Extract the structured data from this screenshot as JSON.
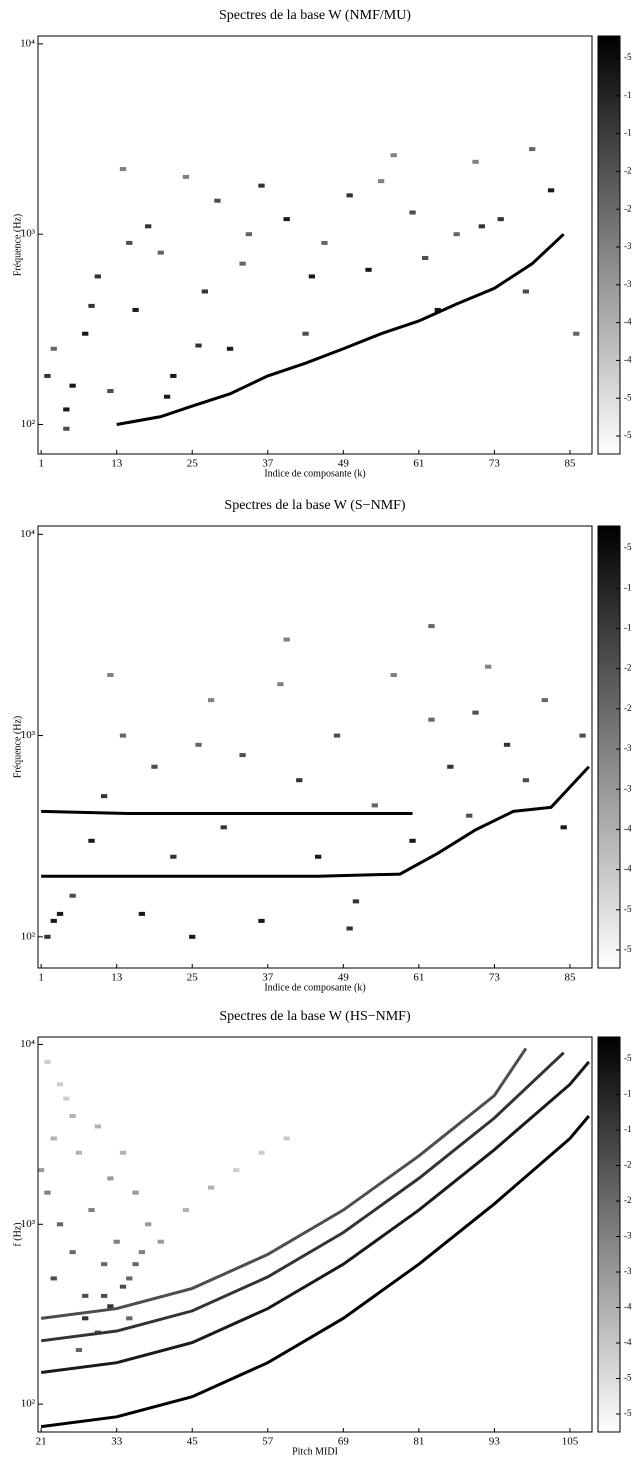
{
  "chart_data": [
    {
      "type": "heatmap",
      "title": "Spectres de la base W (NMF/MU)",
      "x_label": "Indice de composante (k)",
      "y_label": "Fréquence (Hz)",
      "xlim": [
        0.5,
        88.5
      ],
      "xticks": [
        1,
        13,
        25,
        37,
        49,
        61,
        73,
        85
      ],
      "ylim": [
        70,
        11000
      ],
      "ylog": true,
      "yticks": [
        {
          "value": 100,
          "label": "10²"
        },
        {
          "value": 1000,
          "label": "10³"
        },
        {
          "value": 10000,
          "label": "10⁴"
        }
      ],
      "zlim": [
        0,
        1
      ],
      "cmap": [
        "#ffffff",
        "#000000"
      ],
      "colorbar_labels": [
        "-5",
        "-1",
        "-1",
        "-2",
        "-2",
        "-3",
        "-3",
        "-4",
        "-4",
        "-5",
        "-5"
      ],
      "cells": {
        "x": [
          2,
          3,
          5,
          5,
          8,
          10,
          12,
          14,
          16,
          18,
          20,
          22,
          24,
          27,
          29,
          31,
          33,
          36,
          40,
          43,
          46,
          50,
          53,
          57,
          60,
          64,
          67,
          70,
          74,
          78,
          82,
          86,
          6,
          9,
          15,
          21,
          26,
          34,
          44,
          55,
          62,
          71,
          79
        ],
        "y": [
          180,
          250,
          120,
          95,
          300,
          600,
          150,
          2200,
          400,
          1100,
          800,
          180,
          2000,
          500,
          1500,
          250,
          700,
          1800,
          1200,
          300,
          900,
          1600,
          650,
          2600,
          1300,
          400,
          1000,
          2400,
          1200,
          500,
          1700,
          300,
          160,
          420,
          900,
          140,
          260,
          1000,
          600,
          1900,
          750,
          1100,
          2800
        ],
        "z": [
          0.8,
          0.6,
          0.9,
          0.7,
          0.9,
          0.8,
          0.7,
          0.5,
          0.9,
          0.8,
          0.6,
          0.9,
          0.5,
          0.8,
          0.7,
          0.9,
          0.6,
          0.8,
          0.9,
          0.7,
          0.6,
          0.8,
          0.9,
          0.5,
          0.7,
          0.9,
          0.6,
          0.5,
          0.8,
          0.7,
          0.9,
          0.6,
          0.9,
          0.8,
          0.7,
          0.9,
          0.8,
          0.6,
          0.9,
          0.5,
          0.7,
          0.8,
          0.6
        ]
      },
      "series": [
        {
          "color": "#000000",
          "x": [
            13,
            20,
            25,
            31,
            37,
            43,
            49,
            55,
            61,
            67,
            73,
            79,
            84
          ],
          "values": [
            100,
            110,
            125,
            145,
            180,
            210,
            250,
            300,
            350,
            430,
            520,
            700,
            1000
          ]
        }
      ]
    },
    {
      "type": "heatmap",
      "title": "Spectres de la base W (S−NMF)",
      "x_label": "Indice de composante (k)",
      "y_label": "Fréquence (Hz)",
      "xlim": [
        0.5,
        88.5
      ],
      "xticks": [
        1,
        13,
        25,
        37,
        49,
        61,
        73,
        85
      ],
      "ylim": [
        70,
        11000
      ],
      "ylog": true,
      "yticks": [
        {
          "value": 100,
          "label": "10²"
        },
        {
          "value": 1000,
          "label": "10³"
        },
        {
          "value": 10000,
          "label": "10⁴"
        }
      ],
      "zlim": [
        0,
        1
      ],
      "cmap": [
        "#ffffff",
        "#000000"
      ],
      "colorbar_labels": [
        "-5",
        "-1",
        "-1",
        "-2",
        "-2",
        "-3",
        "-3",
        "-4",
        "-4",
        "-5",
        "-5"
      ],
      "cells": {
        "x": [
          2,
          4,
          6,
          9,
          11,
          14,
          17,
          19,
          22,
          25,
          28,
          30,
          33,
          36,
          39,
          42,
          45,
          48,
          51,
          54,
          57,
          60,
          63,
          66,
          69,
          72,
          75,
          78,
          81,
          84,
          87,
          3,
          12,
          26,
          40,
          50,
          63,
          70
        ],
        "y": [
          100,
          130,
          160,
          300,
          500,
          1000,
          130,
          700,
          250,
          100,
          1500,
          350,
          800,
          120,
          1800,
          600,
          250,
          1000,
          150,
          450,
          2000,
          300,
          1200,
          700,
          400,
          2200,
          900,
          600,
          1500,
          350,
          1000,
          120,
          2000,
          900,
          3000,
          110,
          3500,
          1300
        ],
        "z": [
          0.8,
          0.9,
          0.7,
          0.9,
          0.8,
          0.6,
          0.9,
          0.7,
          0.8,
          0.9,
          0.5,
          0.8,
          0.7,
          0.9,
          0.5,
          0.8,
          0.9,
          0.7,
          0.8,
          0.6,
          0.5,
          0.9,
          0.6,
          0.8,
          0.7,
          0.5,
          0.8,
          0.7,
          0.6,
          0.9,
          0.7,
          0.9,
          0.5,
          0.6,
          0.5,
          0.8,
          0.6,
          0.7
        ]
      },
      "series": [
        {
          "color": "#000000",
          "x": [
            1,
            15,
            30,
            45,
            58,
            64,
            70,
            76,
            82,
            88
          ],
          "values": [
            200,
            200,
            200,
            200,
            205,
            260,
            340,
            420,
            440,
            700
          ]
        },
        {
          "color": "#000000",
          "x": [
            1,
            15,
            30,
            45,
            60
          ],
          "values": [
            420,
            410,
            410,
            410,
            410
          ]
        }
      ]
    },
    {
      "type": "heatmap",
      "title": "Spectres de la base W (HS−NMF)",
      "x_label": "Pitch MIDI",
      "y_label": "f (Hz)",
      "xlim": [
        20.5,
        108.5
      ],
      "xticks": [
        21,
        33,
        45,
        57,
        69,
        81,
        93,
        105
      ],
      "ylim": [
        70,
        11000
      ],
      "ylog": true,
      "yticks": [
        {
          "value": 100,
          "label": "10²"
        },
        {
          "value": 1000,
          "label": "10³"
        },
        {
          "value": 10000,
          "label": "10⁴"
        }
      ],
      "zlim": [
        0,
        1
      ],
      "cmap": [
        "#ffffff",
        "#000000"
      ],
      "colorbar_labels": [
        "-5",
        "-1",
        "-1",
        "-2",
        "-2",
        "-3",
        "-3",
        "-4",
        "-4",
        "-5",
        "-5"
      ],
      "cells": {
        "x": [
          21,
          22,
          23,
          24,
          25,
          26,
          27,
          28,
          29,
          30,
          31,
          32,
          33,
          34,
          35,
          36,
          37,
          38,
          22,
          24,
          26,
          28,
          30,
          32,
          34,
          36,
          23,
          27,
          31,
          35,
          40,
          44,
          48,
          52,
          56,
          60
        ],
        "y": [
          2000,
          1500,
          3000,
          1000,
          5000,
          700,
          2500,
          400,
          1200,
          3500,
          600,
          1800,
          800,
          2500,
          500,
          1500,
          700,
          1000,
          8000,
          6000,
          4000,
          300,
          250,
          350,
          450,
          600,
          500,
          200,
          400,
          300,
          800,
          1200,
          1600,
          2000,
          2500,
          3000
        ],
        "z": [
          0.4,
          0.5,
          0.3,
          0.6,
          0.2,
          0.6,
          0.3,
          0.7,
          0.5,
          0.3,
          0.6,
          0.4,
          0.5,
          0.3,
          0.6,
          0.4,
          0.5,
          0.4,
          0.2,
          0.2,
          0.3,
          0.8,
          0.7,
          0.8,
          0.7,
          0.6,
          0.7,
          0.6,
          0.7,
          0.6,
          0.4,
          0.3,
          0.3,
          0.2,
          0.2,
          0.2
        ]
      },
      "series": [
        {
          "color": "#000000",
          "x": [
            21,
            33,
            45,
            57,
            69,
            81,
            93,
            105,
            108
          ],
          "values": [
            75,
            85,
            110,
            170,
            300,
            600,
            1300,
            3000,
            4000
          ]
        },
        {
          "color": "#1a1a1a",
          "x": [
            21,
            33,
            45,
            57,
            69,
            81,
            93,
            105,
            108
          ],
          "values": [
            150,
            170,
            220,
            340,
            600,
            1200,
            2600,
            6000,
            8000
          ]
        },
        {
          "color": "#333333",
          "x": [
            21,
            33,
            45,
            57,
            69,
            81,
            93,
            104
          ],
          "values": [
            225,
            255,
            330,
            510,
            900,
            1800,
            3900,
            9000
          ]
        },
        {
          "color": "#4d4d4d",
          "x": [
            21,
            33,
            45,
            57,
            69,
            81,
            93,
            98
          ],
          "values": [
            300,
            340,
            440,
            680,
            1200,
            2400,
            5200,
            9500
          ]
        }
      ]
    }
  ]
}
